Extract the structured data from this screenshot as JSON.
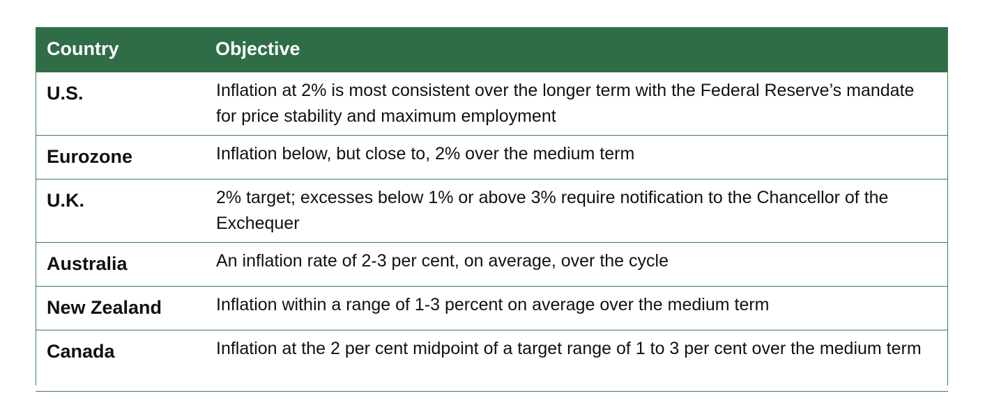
{
  "table": {
    "headers": {
      "country": "Country",
      "objective": "Objective"
    },
    "rows": [
      {
        "country": "U.S.",
        "objective": "Inflation at 2% is most consistent over the longer term with the Federal Reserve’s mandate for price stability and maximum employment"
      },
      {
        "country": "Eurozone",
        "objective": "Inflation below, but close to, 2% over the medium term"
      },
      {
        "country": "U.K.",
        "objective": "2% target; excesses below 1% or above 3% require notification to the Chancellor of the Exchequer"
      },
      {
        "country": "Australia",
        "objective": "An inflation rate of 2-3 per cent, on average, over the cycle"
      },
      {
        "country": "New Zealand",
        "objective": "Inflation within a range of 1-3 percent on average over the medium term"
      },
      {
        "country": "Canada",
        "objective": "Inflation at the 2 per cent midpoint of a target range of 1 to 3 per cent over the medium term"
      }
    ]
  },
  "colors": {
    "header_background": "#2f6d46",
    "header_text": "#ffffff",
    "border": "#3f7a55"
  }
}
